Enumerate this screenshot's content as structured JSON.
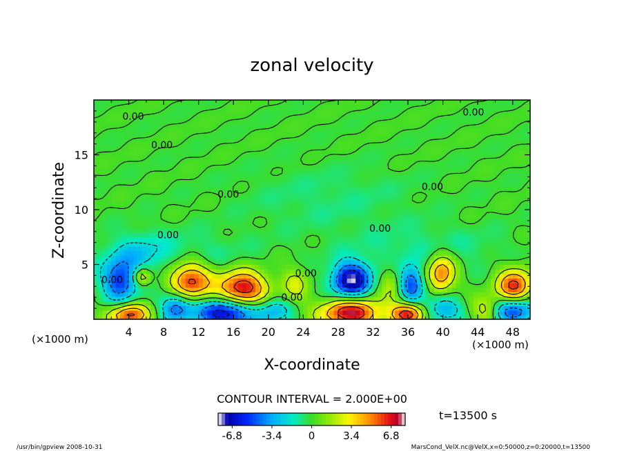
{
  "chart_data": {
    "type": "heatmap",
    "title": "zonal velocity",
    "xlabel": "X-coordinate",
    "ylabel": "Z-coordinate",
    "x_unit_left": "(×1000 m)",
    "x_unit_right": "(×1000 m)",
    "xlim": [
      0,
      50
    ],
    "ylim": [
      0,
      20
    ],
    "x_ticks": [
      "4",
      "8",
      "12",
      "16",
      "20",
      "24",
      "28",
      "32",
      "36",
      "40",
      "44",
      "48"
    ],
    "y_ticks": [
      "5",
      "10",
      "15"
    ],
    "contour_interval_text": "CONTOUR INTERVAL = 2.000E+00",
    "time_text": "t=13500 s",
    "colorbar": {
      "range": [
        -8,
        8
      ],
      "tick_labels": [
        "-6.8",
        "-3.4",
        "0",
        "3.4",
        "6.8"
      ],
      "tick_values": [
        -6.8,
        -3.4,
        0,
        3.4,
        6.8
      ]
    },
    "contour_labels": [
      {
        "text": "0.00",
        "x": 4.5,
        "y": 18.2
      },
      {
        "text": "0.00",
        "x": 43.5,
        "y": 18.6
      },
      {
        "text": "0.00",
        "x": 7.8,
        "y": 15.6
      },
      {
        "text": "0.00",
        "x": 15.4,
        "y": 11.1
      },
      {
        "text": "0.00",
        "x": 38.8,
        "y": 11.8
      },
      {
        "text": "0.00",
        "x": 8.5,
        "y": 7.4
      },
      {
        "text": "0.00",
        "x": 32.8,
        "y": 8.0
      },
      {
        "text": "0.00",
        "x": 2.1,
        "y": 3.3
      },
      {
        "text": "0.00",
        "x": 24.3,
        "y": 3.9
      },
      {
        "text": "0.00",
        "x": 22.7,
        "y": 1.7
      }
    ],
    "features": [
      {
        "x": 3.0,
        "z": 3.5,
        "rx": 2.0,
        "rz": 1.9,
        "v": -5.5
      },
      {
        "x": 5.5,
        "z": 3.9,
        "rx": 1.0,
        "rz": 0.8,
        "v": 4.5
      },
      {
        "x": 4.0,
        "z": 0.4,
        "rx": 2.3,
        "rz": 1.0,
        "v": 6.5
      },
      {
        "x": 11.0,
        "z": 3.5,
        "rx": 2.3,
        "rz": 1.8,
        "v": 6.8
      },
      {
        "x": 9.5,
        "z": 1.2,
        "rx": 1.8,
        "rz": 1.4,
        "v": -5.0
      },
      {
        "x": 17.0,
        "z": 2.8,
        "rx": 2.8,
        "rz": 1.6,
        "v": 7.6
      },
      {
        "x": 15.0,
        "z": 0.6,
        "rx": 3.2,
        "rz": 1.3,
        "v": -7.6
      },
      {
        "x": 20.5,
        "z": 0.8,
        "rx": 2.0,
        "rz": 1.2,
        "v": -3.2
      },
      {
        "x": 23.0,
        "z": 3.2,
        "rx": 1.5,
        "rz": 1.5,
        "v": 2.5
      },
      {
        "x": 29.5,
        "z": 3.6,
        "rx": 2.2,
        "rz": 1.6,
        "v": -7.8
      },
      {
        "x": 29.5,
        "z": 0.6,
        "rx": 3.5,
        "rz": 1.3,
        "v": 7.6
      },
      {
        "x": 34.5,
        "z": 3.2,
        "rx": 1.6,
        "rz": 1.6,
        "v": 3.0
      },
      {
        "x": 36.2,
        "z": 3.2,
        "rx": 1.6,
        "rz": 1.6,
        "v": -6.2
      },
      {
        "x": 36.0,
        "z": 0.5,
        "rx": 1.8,
        "rz": 1.0,
        "v": 7.2
      },
      {
        "x": 39.8,
        "z": 4.2,
        "rx": 1.6,
        "rz": 1.8,
        "v": 5.5
      },
      {
        "x": 40.0,
        "z": 1.0,
        "rx": 2.0,
        "rz": 1.2,
        "v": -3.8
      },
      {
        "x": 45.0,
        "z": 0.9,
        "rx": 1.6,
        "rz": 1.2,
        "v": 3.0
      },
      {
        "x": 48.2,
        "z": 3.0,
        "rx": 2.0,
        "rz": 1.6,
        "v": 6.5
      },
      {
        "x": 48.2,
        "z": 0.8,
        "rx": 2.4,
        "rz": 1.2,
        "v": -6.0
      },
      {
        "x": 9.0,
        "z": 6.0,
        "rx": 8.0,
        "rz": 2.0,
        "v": -1.3
      },
      {
        "x": 38.0,
        "z": 6.5,
        "rx": 9.0,
        "rz": 2.0,
        "v": -1.1
      },
      {
        "x": 27.0,
        "z": 11.0,
        "rx": 10.0,
        "rz": 3.0,
        "v": -0.8
      },
      {
        "x": 5.0,
        "z": 6.0,
        "rx": 3.0,
        "rz": 1.8,
        "v": -1.5
      }
    ],
    "footer_left": "/usr/bin/gpview   2008-10-31",
    "footer_right": "MarsCond_VelX.nc@VelX,x=0:50000,z=0:20000,t=13500"
  }
}
